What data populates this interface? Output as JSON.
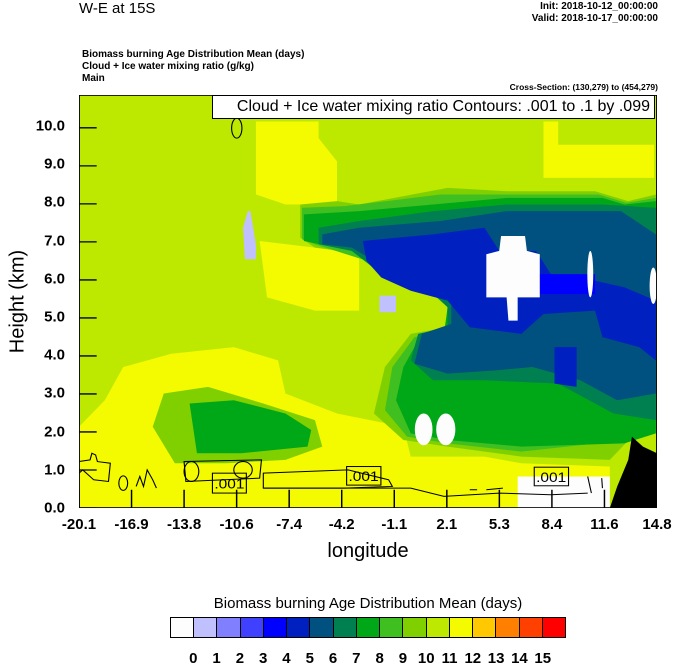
{
  "header": {
    "title": "W-E at 15S",
    "init": "Init: 2018-10-12_00:00:00",
    "valid": "Valid: 2018-10-17_00:00:00",
    "subtitles": [
      "Biomass burning Age Distribution Mean   (days)",
      "Cloud + Ice water mixing ratio   (g/kg)",
      "Main"
    ],
    "cross_section": "Cross-Section: (130,279) to (454,279)"
  },
  "chart_data": {
    "type": "heatmap",
    "title": "W-E at 15S",
    "xlabel": "longitude",
    "ylabel": "Height (km)",
    "x_ticks": [
      "-20.1",
      "-16.9",
      "-13.8",
      "-10.6",
      "-7.4",
      "-4.2",
      "-1.1",
      "2.1",
      "5.3",
      "8.4",
      "11.6",
      "14.8"
    ],
    "y_ticks": [
      "0.0",
      "1.0",
      "2.0",
      "3.0",
      "4.0",
      "5.0",
      "6.0",
      "7.0",
      "8.0",
      "9.0",
      "10.0"
    ],
    "xlim": [
      -20.1,
      14.8
    ],
    "ylim": [
      0,
      10.8
    ],
    "contour_legend": "Cloud + Ice water mixing ratio Contours: .001 to .1 by .099",
    "contour_labels": [
      ".001",
      ".001",
      ".001"
    ],
    "colorbar": {
      "title": "Biomass burning Age Distribution Mean  (days)",
      "labels": [
        "0",
        "1",
        "2",
        "3",
        "4",
        "5",
        "6",
        "7",
        "8",
        "9",
        "10",
        "11",
        "12",
        "13",
        "14",
        "15"
      ],
      "colors": [
        "#fdfdfd",
        "#c0c0ff",
        "#8080ff",
        "#4040ff",
        "#0000ff",
        "#0020c0",
        "#005080",
        "#008050",
        "#00a818",
        "#40c020",
        "#80d000",
        "#bde800",
        "#f4fa00",
        "#ffc800",
        "#ff8000",
        "#ff4000",
        "#ff0000"
      ]
    }
  }
}
